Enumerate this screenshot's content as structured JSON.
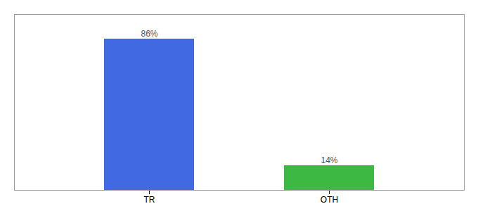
{
  "chart_data": {
    "type": "bar",
    "categories": [
      "TR",
      "OTH"
    ],
    "values": [
      86,
      14
    ],
    "value_labels": [
      "86%",
      "14%"
    ],
    "colors": [
      "#4169e1",
      "#3cb843"
    ],
    "ylim": [
      0,
      100
    ],
    "data_labels": true,
    "tick_labels": "x",
    "grid": false
  }
}
